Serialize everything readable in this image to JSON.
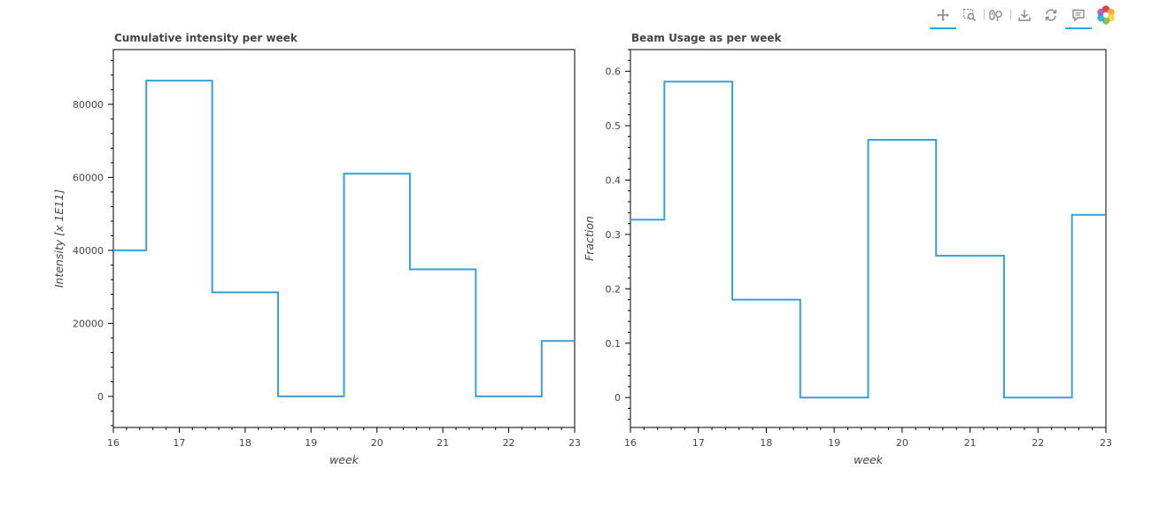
{
  "toolbar": {
    "tools": [
      {
        "name": "pan-tool",
        "icon": "pan-icon",
        "active": true
      },
      {
        "name": "box-zoom-tool",
        "icon": "box-zoom-icon",
        "active": false
      },
      {
        "name": "wheel-zoom-tool",
        "icon": "wheel-zoom-icon",
        "active": false
      },
      {
        "name": "save-tool",
        "icon": "save-icon",
        "active": false
      },
      {
        "name": "reset-tool",
        "icon": "reset-icon",
        "active": false
      },
      {
        "name": "hover-tool",
        "icon": "hover-icon",
        "active": true
      },
      {
        "name": "bokeh-logo",
        "icon": "bokeh-logo-icon",
        "active": false
      }
    ],
    "accent_color": "#26aae1"
  },
  "chart_data": [
    {
      "type": "line",
      "step": "center",
      "title": "Cumulative intensity per week",
      "xlabel": "week",
      "ylabel": "Intensity [x 1E11]",
      "xlim": [
        16,
        23
      ],
      "ylim": [
        -8500,
        95000
      ],
      "xticks": [
        16,
        17,
        18,
        19,
        20,
        21,
        22,
        23
      ],
      "xtick_labels": [
        "16",
        "17",
        "18",
        "19",
        "20",
        "21",
        "22",
        "23"
      ],
      "yticks": [
        0,
        20000,
        40000,
        60000,
        80000
      ],
      "ytick_labels": [
        "0",
        "20000",
        "40000",
        "60000",
        "80000"
      ],
      "grid": false,
      "color": "#3a9fd6",
      "series": [
        {
          "x": [
            16,
            17,
            18,
            19,
            20,
            21,
            22,
            23
          ],
          "y": [
            40000,
            86500,
            28500,
            0,
            61000,
            34800,
            0,
            15200
          ]
        }
      ]
    },
    {
      "type": "line",
      "step": "center",
      "title": "Beam Usage as per week",
      "xlabel": "week",
      "ylabel": "Fraction",
      "xlim": [
        16,
        23
      ],
      "ylim": [
        -0.055,
        0.64
      ],
      "xticks": [
        16,
        17,
        18,
        19,
        20,
        21,
        22,
        23
      ],
      "xtick_labels": [
        "16",
        "17",
        "18",
        "19",
        "20",
        "21",
        "22",
        "23"
      ],
      "yticks": [
        0,
        0.1,
        0.2,
        0.3,
        0.4,
        0.5,
        0.6
      ],
      "ytick_labels": [
        "0",
        "0.1",
        "0.2",
        "0.3",
        "0.4",
        "0.5",
        "0.6"
      ],
      "grid": false,
      "color": "#3a9fd6",
      "series": [
        {
          "x": [
            16,
            17,
            18,
            19,
            20,
            21,
            22,
            23
          ],
          "y": [
            0.327,
            0.581,
            0.18,
            0,
            0.474,
            0.261,
            0,
            0.336
          ]
        }
      ]
    }
  ]
}
